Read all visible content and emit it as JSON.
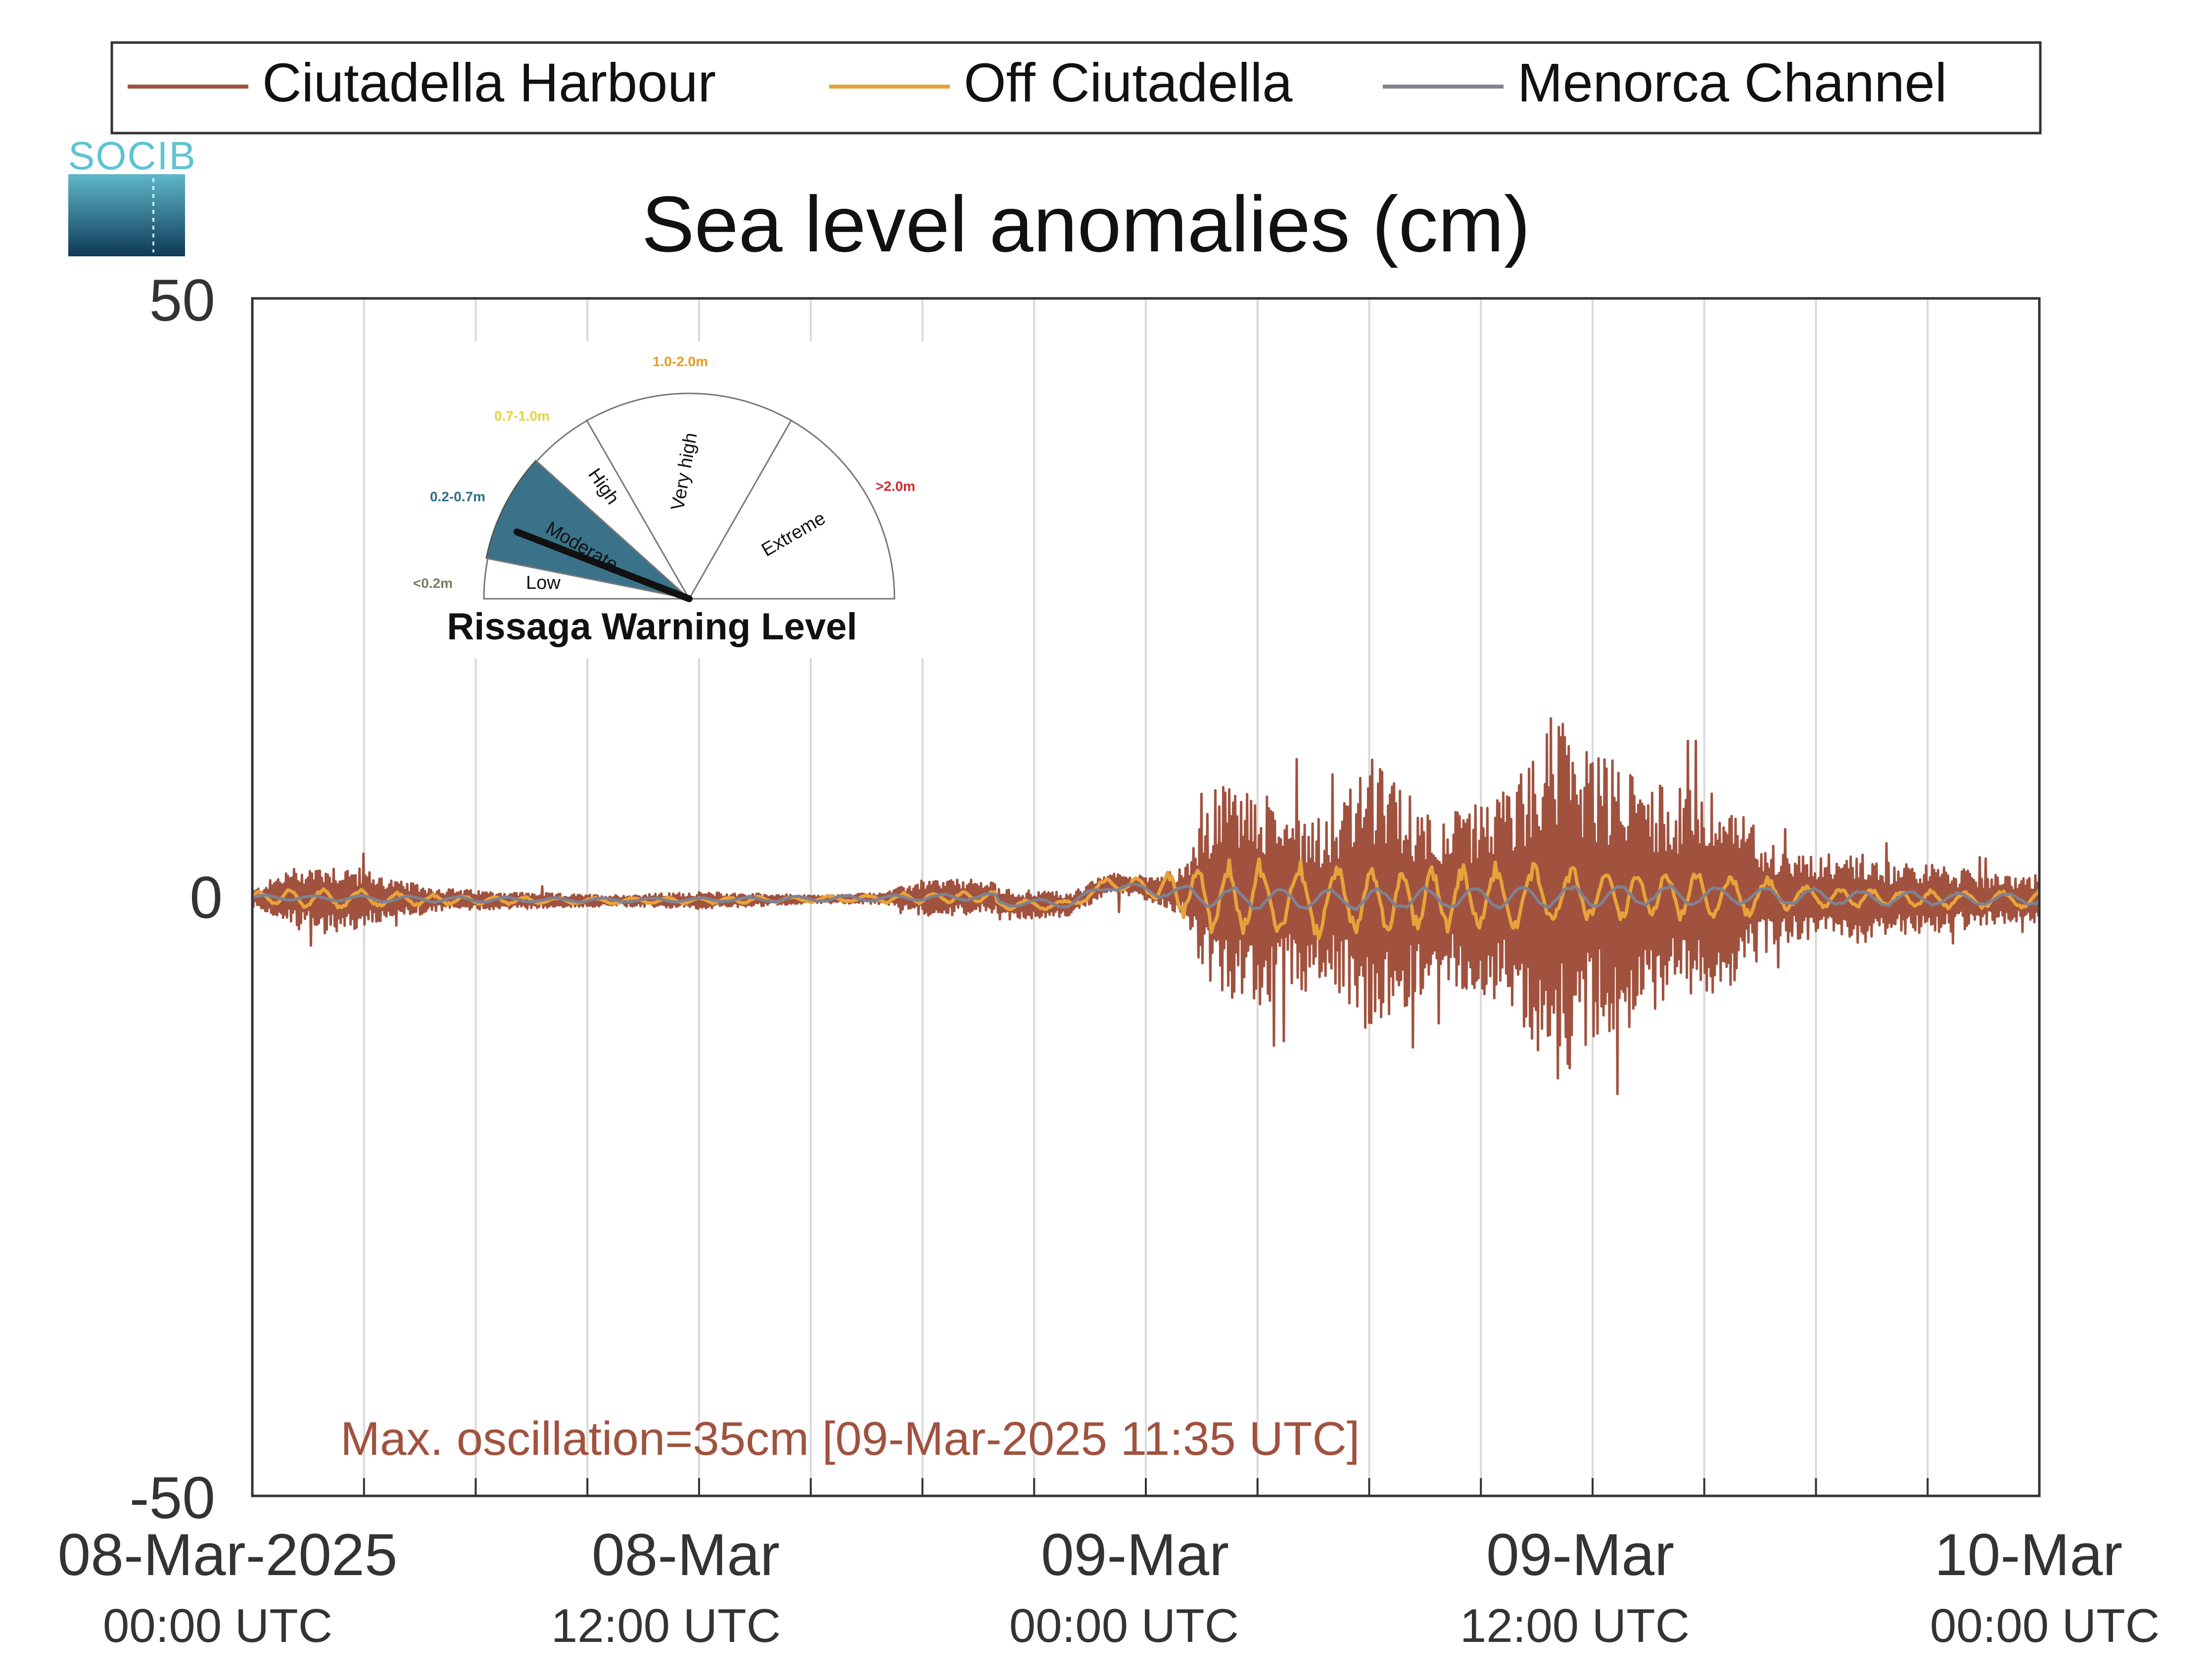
{
  "logo": {
    "text": "SOCIB"
  },
  "legend": [
    {
      "label": "Ciutadella Harbour",
      "color": "#A0523F"
    },
    {
      "label": "Off Ciutadella",
      "color": "#E8A23A"
    },
    {
      "label": "Menorca Channel",
      "color": "#7F8291"
    }
  ],
  "inset": {
    "title": "Rissaga Warning Level",
    "levels": [
      {
        "name": "Low",
        "range": "<0.2m",
        "range_color": "#7C7A5A"
      },
      {
        "name": "Moderate",
        "range": "0.2-0.7m",
        "range_color": "#2F6F86",
        "active": true,
        "fill": "#3A7389"
      },
      {
        "name": "High",
        "range": "0.7-1.0m",
        "range_color": "#E8D23A"
      },
      {
        "name": "Very high",
        "range": "1.0-2.0m",
        "range_color": "#E89A1E"
      },
      {
        "name": "Extreme",
        "range": ">2.0m",
        "range_color": "#D7262C"
      }
    ]
  },
  "annotation": {
    "text": "Max. oscillation=35cm [09-Mar-2025 11:35 UTC]",
    "color": "#A0523F"
  },
  "chart_data": {
    "type": "line",
    "title": "Sea level anomalies (cm)",
    "ylim": [
      -50,
      50
    ],
    "yticks": [
      "50",
      "0",
      "-50"
    ],
    "x_range": [
      "08-Mar-2025 00:00 UTC",
      "10-Mar-2025 00:00 UTC"
    ],
    "xticks": [
      {
        "date": "08-Mar-2025",
        "time": "00:00 UTC"
      },
      {
        "date": "08-Mar",
        "time": "12:00 UTC"
      },
      {
        "date": "09-Mar",
        "time": "00:00 UTC"
      },
      {
        "date": "09-Mar",
        "time": "12:00 UTC"
      },
      {
        "date": "10-Mar",
        "time": "00:00 UTC"
      }
    ],
    "grid": "vertical",
    "legend_position": "top",
    "series": [
      {
        "name": "Ciutadella Harbour",
        "color": "#A0523F",
        "envelope_times": [
          "08-Mar 00:00",
          "08-Mar 01:00",
          "08-Mar 02:00",
          "08-Mar 03:00",
          "08-Mar 04:00",
          "08-Mar 05:00",
          "08-Mar 06:00",
          "08-Mar 07:00",
          "08-Mar 08:00",
          "08-Mar 09:00",
          "08-Mar 10:00",
          "08-Mar 11:00",
          "08-Mar 12:00",
          "08-Mar 13:00",
          "08-Mar 14:00",
          "08-Mar 15:00",
          "08-Mar 16:00",
          "08-Mar 17:00",
          "08-Mar 18:00",
          "08-Mar 19:00",
          "08-Mar 20:00",
          "08-Mar 21:00",
          "08-Mar 22:00",
          "08-Mar 23:00",
          "09-Mar 00:00",
          "09-Mar 01:00",
          "09-Mar 02:00",
          "09-Mar 03:00",
          "09-Mar 04:00",
          "09-Mar 05:00",
          "09-Mar 06:00",
          "09-Mar 07:00",
          "09-Mar 08:00",
          "09-Mar 09:00",
          "09-Mar 10:00",
          "09-Mar 11:00",
          "09-Mar 12:00",
          "09-Mar 13:00",
          "09-Mar 14:00",
          "09-Mar 15:00",
          "09-Mar 16:00",
          "09-Mar 17:00",
          "09-Mar 18:00",
          "09-Mar 19:00",
          "09-Mar 20:00",
          "09-Mar 21:00",
          "09-Mar 22:00",
          "09-Mar 23:00",
          "10-Mar 00:00"
        ],
        "amplitude_cm": [
          0.5,
          2.5,
          3.0,
          2.5,
          1.5,
          1.0,
          0.8,
          0.7,
          0.6,
          0.5,
          0.5,
          0.6,
          0.7,
          0.6,
          0.5,
          0.3,
          0.4,
          0.5,
          1.5,
          1.5,
          1.3,
          1.2,
          1.0,
          0.8,
          1.0,
          2.0,
          10,
          9,
          8,
          7,
          12,
          9,
          7,
          8,
          10,
          16,
          12,
          11,
          9,
          9,
          7,
          4,
          3.5,
          4.0,
          3.0,
          3.0,
          2.5,
          2.0,
          2.0
        ],
        "max_cm": 17,
        "min_cm": -17
      },
      {
        "name": "Off Ciutadella",
        "color": "#E8A23A",
        "envelope_times": [
          "08-Mar 00:00",
          "08-Mar 02:00",
          "08-Mar 04:00",
          "08-Mar 06:00",
          "08-Mar 08:00",
          "08-Mar 10:00",
          "08-Mar 12:00",
          "08-Mar 14:00",
          "08-Mar 16:00",
          "08-Mar 18:00",
          "08-Mar 20:00",
          "08-Mar 22:00",
          "09-Mar 00:00",
          "09-Mar 02:00",
          "09-Mar 04:00",
          "09-Mar 06:00",
          "09-Mar 08:00",
          "09-Mar 10:00",
          "09-Mar 12:00",
          "09-Mar 14:00",
          "09-Mar 16:00",
          "09-Mar 18:00",
          "09-Mar 20:00",
          "09-Mar 22:00",
          "10-Mar 00:00"
        ],
        "amplitude_cm": [
          0.5,
          1.0,
          0.6,
          0.4,
          0.3,
          0.3,
          0.3,
          0.3,
          0.3,
          0.5,
          0.5,
          0.4,
          0.8,
          3.5,
          3.5,
          3.0,
          3.0,
          3.0,
          2.5,
          2.5,
          2.0,
          1.0,
          0.8,
          0.8,
          0.8
        ]
      },
      {
        "name": "Menorca Channel",
        "color": "#7F8291",
        "envelope_times": [
          "08-Mar 00:00",
          "08-Mar 04:00",
          "08-Mar 08:00",
          "08-Mar 12:00",
          "08-Mar 16:00",
          "08-Mar 20:00",
          "09-Mar 00:00",
          "09-Mar 02:00",
          "09-Mar 06:00",
          "09-Mar 10:00",
          "09-Mar 14:00",
          "09-Mar 18:00",
          "09-Mar 22:00",
          "10-Mar 00:00"
        ],
        "amplitude_cm": [
          0.2,
          0.3,
          0.2,
          0.2,
          0.3,
          0.3,
          0.5,
          1.0,
          1.0,
          1.0,
          0.9,
          0.8,
          0.6,
          0.5
        ]
      }
    ]
  }
}
